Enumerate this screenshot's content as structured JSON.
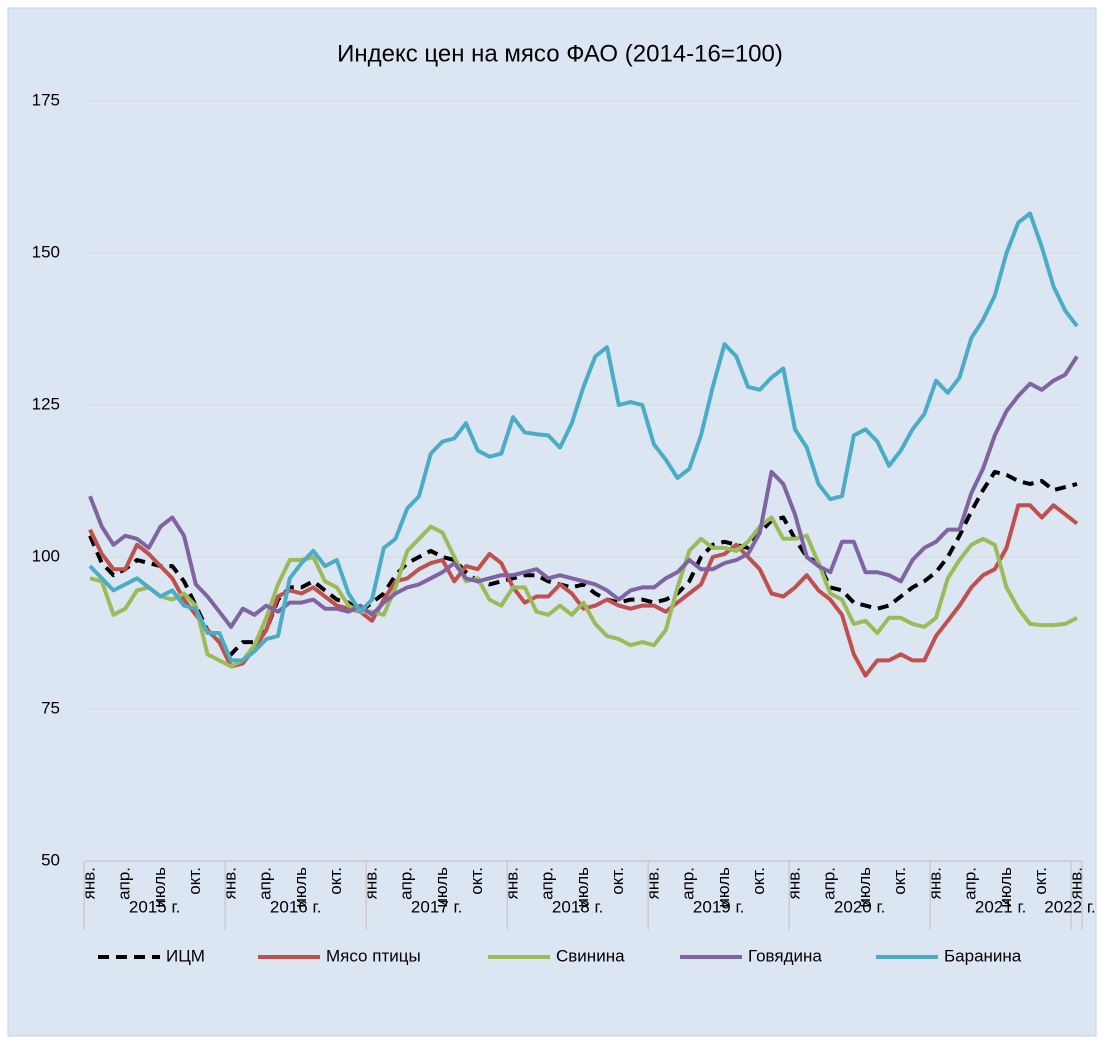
{
  "chart_data": {
    "type": "line",
    "title": "Индекс цен на мясо ФАО (2014-16=100)",
    "categories": [
      "янв.",
      null,
      null,
      "апр.",
      null,
      null,
      "июль",
      null,
      null,
      "окт.",
      null,
      null,
      "янв.",
      null,
      null,
      "апр.",
      null,
      null,
      "июль",
      null,
      null,
      "окт.",
      null,
      null,
      "янв.",
      null,
      null,
      "апр.",
      null,
      null,
      "июль",
      null,
      null,
      "окт.",
      null,
      null,
      "янв.",
      null,
      null,
      "апр.",
      null,
      null,
      "июль",
      null,
      null,
      "окт.",
      null,
      null,
      "янв.",
      null,
      null,
      "апр.",
      null,
      null,
      "июль",
      null,
      null,
      "окт.",
      null,
      null,
      "янв.",
      null,
      null,
      "апр.",
      null,
      null,
      "июль",
      null,
      null,
      "окт.",
      null,
      null,
      "янв.",
      null,
      null,
      "апр.",
      null,
      null,
      "июль",
      null,
      null,
      "окт.",
      null,
      null,
      "янв."
    ],
    "years": [
      "2015 г.",
      "2016 г.",
      "2017 г.",
      "2018 г.",
      "2019 г.",
      "2020 г.",
      "2021 г.",
      "2022 г."
    ],
    "ylim": [
      50,
      175
    ],
    "yticks": [
      50,
      75,
      100,
      125,
      150,
      175
    ],
    "grid": true,
    "legend": "bottom",
    "series": [
      {
        "name": "ИЦМ",
        "color": "#000000",
        "dashed": true,
        "values": [
          103.5,
          99,
          97,
          98,
          99.5,
          99,
          98.5,
          98.5,
          96,
          92,
          88,
          86,
          84,
          86,
          86,
          88,
          93,
          95,
          95,
          96,
          94.5,
          93,
          92.5,
          91,
          92.5,
          94,
          97,
          99,
          100,
          101,
          100,
          99.5,
          97.5,
          96,
          95.5,
          96,
          96.5,
          97,
          97,
          96,
          95.5,
          95,
          95.5,
          94,
          93,
          92.5,
          93,
          93,
          92.5,
          93,
          94,
          96,
          100,
          102,
          102.5,
          102,
          101.5,
          104,
          106,
          106.5,
          103,
          100,
          99,
          95,
          94.5,
          92.5,
          92,
          91.5,
          92,
          93.5,
          95,
          96,
          97.5,
          100,
          103.5,
          107.5,
          111,
          114,
          113.5,
          112.5,
          112,
          112.5,
          111,
          111.5,
          112
        ]
      },
      {
        "name": "Мясо птицы",
        "color": "#c0504d",
        "values": [
          104.5,
          100.5,
          98,
          98,
          102,
          100.5,
          98.5,
          96.5,
          93,
          90.5,
          88,
          86,
          82,
          82.5,
          85,
          88,
          93.5,
          94.5,
          94,
          95,
          93.5,
          92,
          91.5,
          91,
          89.5,
          93,
          96,
          96.5,
          98,
          99,
          99.5,
          96,
          98.5,
          98,
          100.5,
          99,
          95,
          92.5,
          93.5,
          93.5,
          95.5,
          94,
          91.5,
          92,
          93,
          92,
          91.5,
          92,
          92,
          91,
          92.5,
          94,
          95.5,
          100,
          100.5,
          102,
          100,
          98,
          94,
          93.5,
          95,
          97,
          94.5,
          93,
          90.5,
          84,
          80.5,
          83,
          83,
          84,
          83,
          83,
          87,
          89.5,
          92,
          95,
          97,
          98,
          101.5,
          108.5,
          108.5,
          106.5,
          108.5,
          107,
          105.5
        ]
      },
      {
        "name": "Свинина",
        "color": "#9bbb59",
        "values": [
          96.5,
          96,
          90.5,
          91.5,
          94.5,
          95,
          93.5,
          93,
          94,
          92,
          84,
          83,
          82,
          83,
          85.5,
          90,
          95.5,
          99.5,
          99.5,
          100,
          96,
          95,
          92,
          91,
          91,
          90.5,
          95,
          101,
          103,
          105,
          104,
          100,
          96,
          96.5,
          93,
          92,
          95,
          95,
          91,
          90.5,
          92,
          90.5,
          92.5,
          89,
          87,
          86.5,
          85.5,
          86,
          85.5,
          88,
          95,
          101,
          103,
          101.5,
          101.5,
          101,
          102.5,
          105,
          106.5,
          103,
          103,
          103.5,
          99,
          94,
          93,
          89,
          89.5,
          87.5,
          90,
          90,
          89,
          88.5,
          90,
          96.5,
          99.5,
          102,
          103,
          102,
          95,
          91.5,
          89,
          88.8,
          88.8,
          89,
          90
        ]
      },
      {
        "name": "Говядина",
        "color": "#8064a2",
        "values": [
          110,
          105,
          102,
          103.5,
          103,
          101.5,
          105,
          106.5,
          103.5,
          95.5,
          93.5,
          91,
          88.5,
          91.5,
          90.5,
          92,
          91,
          92.5,
          92.5,
          93,
          91.5,
          91.5,
          91,
          92,
          90.5,
          92.5,
          94,
          95,
          95.5,
          96.5,
          97.5,
          99,
          96.5,
          96,
          96.5,
          97,
          97,
          97.5,
          98,
          96.5,
          97,
          96.5,
          96,
          95.5,
          94.5,
          93,
          94.5,
          95,
          95,
          96.5,
          97.5,
          99.5,
          98,
          98,
          99,
          99.5,
          100.5,
          104,
          114,
          112,
          107,
          100,
          98.5,
          97.5,
          102.5,
          102.5,
          97.5,
          97.5,
          97,
          96,
          99.5,
          101.5,
          102.5,
          104.5,
          104.5,
          110.5,
          114.5,
          120,
          124,
          126.5,
          128.5,
          127.5,
          129,
          130,
          133
        ]
      },
      {
        "name": "Баранина",
        "color": "#4bacc6",
        "values": [
          98.5,
          96.5,
          94.5,
          95.5,
          96.5,
          95,
          93.5,
          94.5,
          92,
          91.5,
          87.5,
          87.5,
          83,
          83,
          84.5,
          86.5,
          87,
          96.5,
          99,
          101,
          98.5,
          99.5,
          94,
          91,
          93,
          101.5,
          103,
          108,
          110,
          117,
          119,
          119.5,
          122,
          117.5,
          116.5,
          117,
          123,
          120.5,
          120.2,
          120,
          118,
          122,
          128,
          133,
          134.5,
          125,
          125.5,
          125,
          118.5,
          116,
          113,
          114.5,
          120,
          128,
          135,
          133,
          128,
          127.5,
          129.5,
          131,
          121,
          118,
          112,
          109.5,
          110,
          120,
          121,
          119,
          115,
          117.5,
          121,
          123.5,
          129,
          127,
          129.5,
          136,
          139,
          143,
          150,
          155,
          156.5,
          151,
          144.5,
          140.5,
          138
        ]
      }
    ]
  }
}
